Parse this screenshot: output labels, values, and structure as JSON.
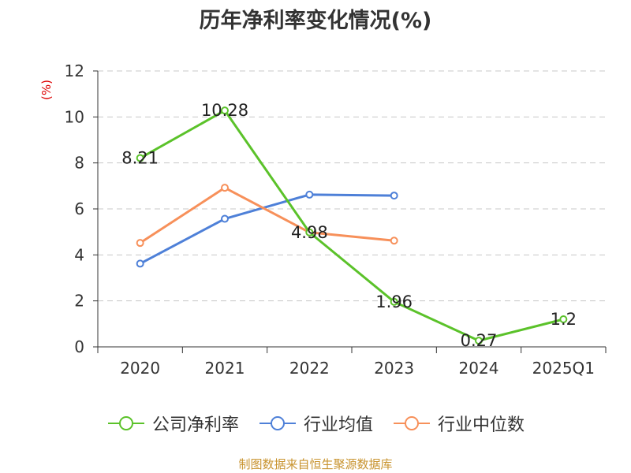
{
  "chart_data": {
    "type": "line",
    "title": "历年净利率变化情况(%)",
    "ylabel": "(%)",
    "xlabel": "",
    "categories": [
      "2020",
      "2021",
      "2022",
      "2023",
      "2024",
      "2025Q1"
    ],
    "ylim": [
      0,
      12
    ],
    "yticks": [
      0,
      2,
      4,
      6,
      8,
      10,
      12
    ],
    "grid": true,
    "legend_position": "bottom",
    "series": [
      {
        "name": "公司净利率",
        "color": "#5bc22a",
        "values": [
          8.21,
          10.28,
          4.98,
          1.96,
          0.27,
          1.2
        ],
        "labels": [
          "8.21",
          "10.28",
          "4.98",
          "1.96",
          "0.27",
          "1.2"
        ],
        "show_labels": true
      },
      {
        "name": "行业均值",
        "color": "#4e80d8",
        "values": [
          3.62,
          5.57,
          6.62,
          6.58,
          null,
          null
        ],
        "show_labels": false
      },
      {
        "name": "行业中位数",
        "color": "#f7905a",
        "values": [
          4.52,
          6.92,
          4.98,
          4.62,
          null,
          null
        ],
        "show_labels": false
      }
    ]
  },
  "source": "制图数据来自恒生聚源数据库"
}
